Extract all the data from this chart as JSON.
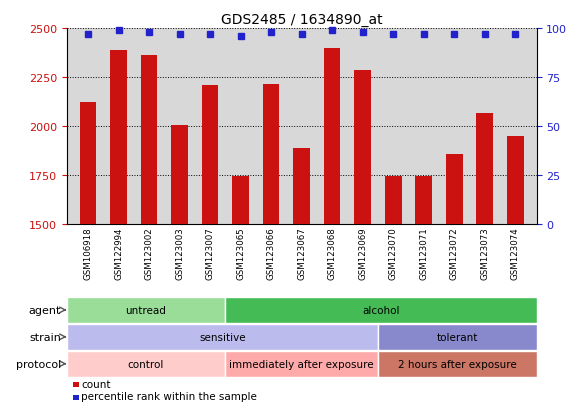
{
  "title": "GDS2485 / 1634890_at",
  "samples": [
    "GSM106918",
    "GSM122994",
    "GSM123002",
    "GSM123003",
    "GSM123007",
    "GSM123065",
    "GSM123066",
    "GSM123067",
    "GSM123068",
    "GSM123069",
    "GSM123070",
    "GSM123071",
    "GSM123072",
    "GSM123073",
    "GSM123074"
  ],
  "counts": [
    2120,
    2390,
    2360,
    2005,
    2210,
    1745,
    2215,
    1885,
    2400,
    2285,
    1745,
    1745,
    1855,
    2065,
    1950
  ],
  "percentiles": [
    97,
    99,
    98,
    97,
    97,
    96,
    98,
    97,
    99,
    98,
    97,
    97,
    97,
    97,
    97
  ],
  "bar_color": "#cc1111",
  "dot_color": "#2222cc",
  "ylim_left": [
    1500,
    2500
  ],
  "ylim_right": [
    0,
    100
  ],
  "yticks_left": [
    1500,
    1750,
    2000,
    2250,
    2500
  ],
  "yticks_right": [
    0,
    25,
    50,
    75,
    100
  ],
  "bg_color": "#d8d8d8",
  "agent_groups": [
    {
      "label": "untread",
      "start": 0,
      "end": 5,
      "color": "#99dd99"
    },
    {
      "label": "alcohol",
      "start": 5,
      "end": 15,
      "color": "#44bb55"
    }
  ],
  "strain_groups": [
    {
      "label": "sensitive",
      "start": 0,
      "end": 10,
      "color": "#bbbbee"
    },
    {
      "label": "tolerant",
      "start": 10,
      "end": 15,
      "color": "#8888cc"
    }
  ],
  "protocol_groups": [
    {
      "label": "control",
      "start": 0,
      "end": 5,
      "color": "#ffcccc"
    },
    {
      "label": "immediately after exposure",
      "start": 5,
      "end": 10,
      "color": "#ffaaaa"
    },
    {
      "label": "2 hours after exposure",
      "start": 10,
      "end": 15,
      "color": "#cc7766"
    }
  ],
  "row_labels": [
    "agent",
    "strain",
    "protocol"
  ],
  "legend_count_label": "count",
  "legend_pct_label": "percentile rank within the sample"
}
